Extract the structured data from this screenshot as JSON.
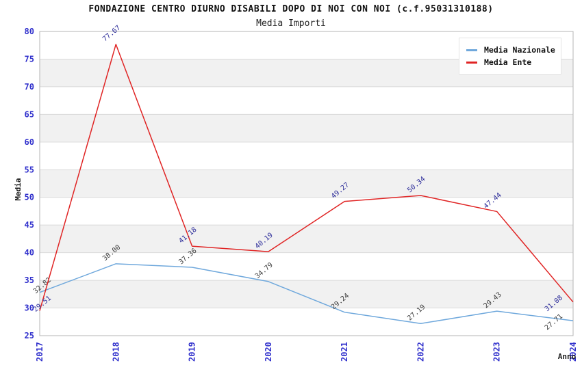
{
  "window": {
    "title": "FONDAZIONE CENTRO DIURNO DISABILI DOPO DI NOI CON NOI (c.f.95031310188)",
    "subtitle": "Media Importi"
  },
  "chart_data": {
    "type": "line",
    "title": "FONDAZIONE CENTRO DIURNO DISABILI DOPO DI NOI CON NOI (c.f.95031310188)",
    "subtitle": "Media Importi",
    "x": [
      2017,
      2018,
      2019,
      2020,
      2021,
      2022,
      2023,
      2024
    ],
    "xlabel": "Anno",
    "ylabel": "Media",
    "ylim": [
      25,
      80
    ],
    "ytick_step": 5,
    "grid": true,
    "alternating_bands": true,
    "legend_position": "top-right",
    "series": [
      {
        "name": "Media Nazionale",
        "color": "#6fa8dc",
        "label_color": "#3a3a3a",
        "values": [
          32.82,
          38.0,
          37.36,
          34.79,
          29.24,
          27.19,
          29.43,
          27.71
        ]
      },
      {
        "name": "Media Ente",
        "color": "#e02424",
        "label_color": "#2b2b99",
        "values": [
          29.51,
          77.67,
          41.18,
          40.19,
          49.27,
          50.34,
          47.44,
          31.08
        ]
      }
    ],
    "colors": {
      "tick_label": "#3030cc",
      "axis_title": "#1a1a1a",
      "grid": "#dadada",
      "band": "#f1f1f1",
      "frame": "#b4b4b4"
    }
  }
}
